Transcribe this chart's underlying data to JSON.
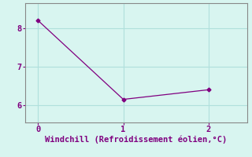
{
  "x": [
    0,
    1,
    2
  ],
  "y": [
    8.2,
    6.15,
    6.4
  ],
  "line_color": "#800080",
  "marker_style": "D",
  "marker_size": 2.5,
  "background_color": "#d8f5f0",
  "grid_color": "#b0e0dc",
  "axis_color": "#888888",
  "xlabel": "Windchill (Refroidissement éolien,°C)",
  "xlabel_color": "#800080",
  "xlabel_fontsize": 7.5,
  "tick_label_color": "#800080",
  "tick_fontsize": 7.5,
  "yticks": [
    6,
    7,
    8
  ],
  "xticks": [
    0,
    1,
    2
  ],
  "xlim": [
    -0.15,
    2.45
  ],
  "ylim": [
    5.55,
    8.65
  ]
}
